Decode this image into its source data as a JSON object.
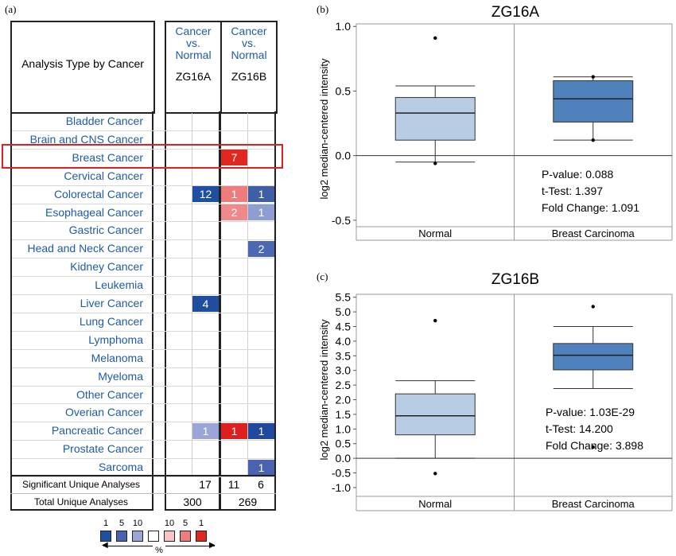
{
  "panel_a": {
    "letter": "(a)",
    "header_title": "Analysis Type by Cancer",
    "columns": [
      {
        "lines": [
          "Cancer",
          "vs.",
          "Normal"
        ],
        "gene": "ZG16A"
      },
      {
        "lines": [
          "Cancer",
          "vs.",
          "Normal"
        ],
        "gene": "ZG16B"
      }
    ],
    "cancers": [
      "Bladder Cancer",
      "Brain and CNS Cancer",
      "Breast Cancer",
      "Cervical Cancer",
      "Colorectal Cancer",
      "Esophageal Cancer",
      "Gastric Cancer",
      "Head and Neck Cancer",
      "Kidney Cancer",
      "Leukemia",
      "Liver Cancer",
      "Lung Cancer",
      "Lymphoma",
      "Melanoma",
      "Myeloma",
      "Other Cancer",
      "Overian Cancer",
      "Pancreatic Cancer",
      "Prostate Cancer",
      "Sarcoma"
    ],
    "highlight_row": "Breast Cancer",
    "cells": [
      {
        "row": "Breast Cancer",
        "gene": "ZG16B",
        "dir": "up",
        "value": "7",
        "color": "#e0281e"
      },
      {
        "row": "Colorectal Cancer",
        "gene": "ZG16A",
        "dir": "down",
        "value": "12",
        "color": "#1e4fa3"
      },
      {
        "row": "Colorectal Cancer",
        "gene": "ZG16B",
        "dir": "up",
        "value": "1",
        "color": "#ee7c7c"
      },
      {
        "row": "Colorectal Cancer",
        "gene": "ZG16B",
        "dir": "down",
        "value": "1",
        "color": "#3f5ea6"
      },
      {
        "row": "Esophageal Cancer",
        "gene": "ZG16B",
        "dir": "up",
        "value": "2",
        "color": "#f08a8a"
      },
      {
        "row": "Esophageal Cancer",
        "gene": "ZG16B",
        "dir": "down",
        "value": "1",
        "color": "#8f9ed0"
      },
      {
        "row": "Head and Neck Cancer",
        "gene": "ZG16B",
        "dir": "down",
        "value": "2",
        "color": "#4d67b3"
      },
      {
        "row": "Liver Cancer",
        "gene": "ZG16A",
        "dir": "down",
        "value": "4",
        "color": "#1f4ea1"
      },
      {
        "row": "Pancreatic Cancer",
        "gene": "ZG16A",
        "dir": "down",
        "value": "1",
        "color": "#9aa6d8"
      },
      {
        "row": "Pancreatic Cancer",
        "gene": "ZG16B",
        "dir": "up",
        "value": "1",
        "color": "#dd1f1f"
      },
      {
        "row": "Pancreatic Cancer",
        "gene": "ZG16B",
        "dir": "down",
        "value": "1",
        "color": "#2048a0"
      },
      {
        "row": "Sarcoma",
        "gene": "ZG16B",
        "dir": "down",
        "value": "1",
        "color": "#4a63b0"
      }
    ],
    "footer": [
      {
        "label": "Significant Unique Analyses",
        "zg16a_down": "17",
        "zg16b_up": "11",
        "zg16b_down": "6"
      },
      {
        "label": "Total Unique Analyses",
        "zg16a_total": "300",
        "zg16b_total": "269"
      }
    ],
    "legend": {
      "labels": [
        "1",
        "5",
        "10",
        "",
        "10",
        "5",
        "1"
      ],
      "colors": [
        "#1e4fa3",
        "#4a63b0",
        "#9aa6d8",
        "#ffffff",
        "#f7c4c4",
        "#ee7c7c",
        "#e0281e"
      ],
      "unit": "%"
    }
  },
  "chart_data": [
    {
      "panel": "(b)",
      "type": "box",
      "title": "ZG16A",
      "ylabel": "log2 median-centered intensity",
      "ylim": [
        -0.55,
        1.02
      ],
      "yticks": [
        "1.0",
        "0.5",
        "0.0",
        "-0.5"
      ],
      "categories": [
        "Normal",
        "Breast Carcinoma"
      ],
      "boxes": [
        {
          "name": "Normal",
          "whisker_low": -0.05,
          "q1": 0.12,
          "median": 0.33,
          "q3": 0.45,
          "whisker_high": 0.54,
          "outliers": [
            0.91,
            -0.06
          ],
          "color": "#b8cce4"
        },
        {
          "name": "Breast Carcinoma",
          "whisker_low": 0.12,
          "q1": 0.26,
          "median": 0.44,
          "q3": 0.58,
          "whisker_high": 0.61,
          "outliers": [
            0.61,
            0.12
          ],
          "color": "#4f81bd"
        }
      ],
      "stats": [
        "P-value: 0.088",
        "t-Test: 1.397",
        "Fold Change: 1.091"
      ]
    },
    {
      "panel": "(c)",
      "type": "box",
      "title": "ZG16B",
      "ylabel": "log2 median-centered intensity",
      "ylim": [
        -1.3,
        5.6
      ],
      "yticks": [
        "5.5",
        "5.0",
        "4.5",
        "4.0",
        "3.5",
        "3.0",
        "2.5",
        "2.0",
        "1.5",
        "1.0",
        "0.5",
        "0.0",
        "-0.5",
        "-1.0"
      ],
      "categories": [
        "Normal",
        "Breast Carcinoma"
      ],
      "boxes": [
        {
          "name": "Normal",
          "whisker_low": 0.0,
          "q1": 0.8,
          "median": 1.45,
          "q3": 2.2,
          "whisker_high": 2.65,
          "outliers": [
            4.7,
            -0.52
          ],
          "color": "#b8cce4"
        },
        {
          "name": "Breast Carcinoma",
          "whisker_low": 2.38,
          "q1": 3.02,
          "median": 3.52,
          "q3": 3.92,
          "whisker_high": 4.5,
          "outliers": [
            5.18,
            0.38
          ],
          "color": "#4f81bd"
        }
      ],
      "stats": [
        "P-value: 1.03E-29",
        "t-Test: 14.200",
        "Fold Change: 3.898"
      ]
    }
  ]
}
